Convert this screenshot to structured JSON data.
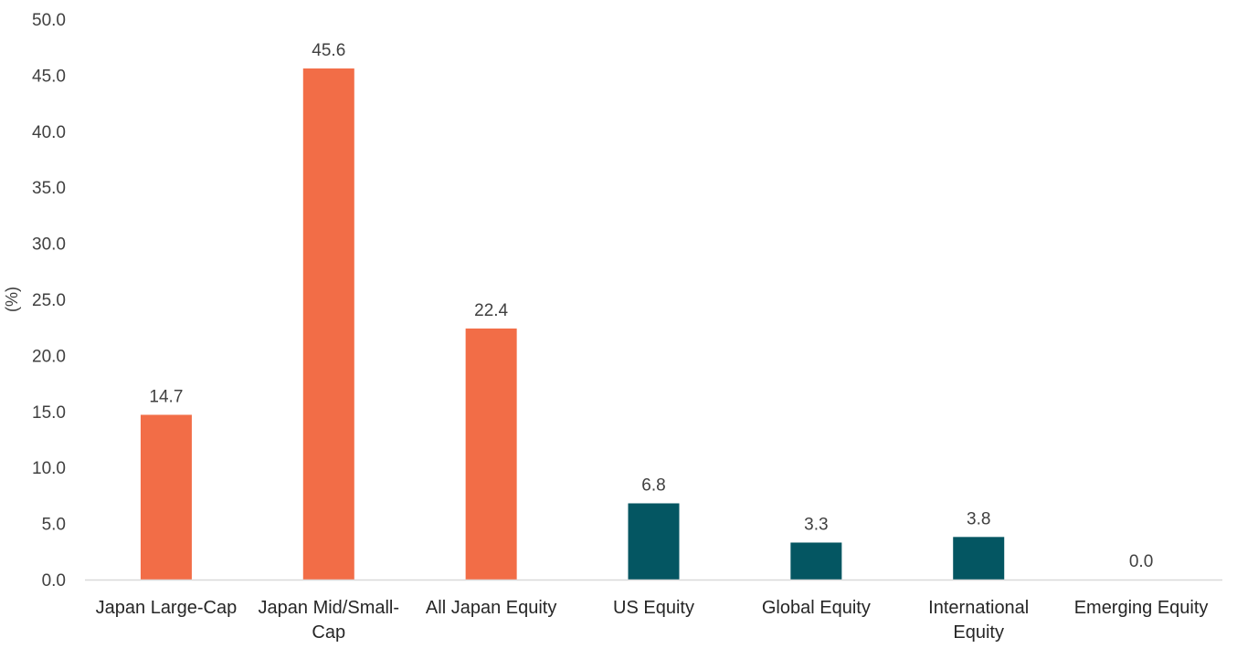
{
  "chart_data": {
    "type": "bar",
    "ylabel": "(%)",
    "ylim": [
      0,
      50
    ],
    "yticks": [
      "0.0",
      "5.0",
      "10.0",
      "15.0",
      "20.0",
      "25.0",
      "30.0",
      "35.0",
      "40.0",
      "45.0",
      "50.0"
    ],
    "grid": false,
    "categories": [
      [
        "Japan Large-Cap"
      ],
      [
        "Japan Mid/Small-",
        "Cap"
      ],
      [
        "All Japan Equity"
      ],
      [
        "US Equity"
      ],
      [
        "Global Equity"
      ],
      [
        "International",
        "Equity"
      ],
      [
        "Emerging Equity"
      ]
    ],
    "values": [
      14.7,
      45.6,
      22.4,
      6.8,
      3.3,
      3.8,
      0.0
    ],
    "value_labels": [
      "14.7",
      "45.6",
      "22.4",
      "6.8",
      "3.3",
      "3.8",
      "0.0"
    ],
    "colors": [
      "#f26d47",
      "#f26d47",
      "#f26d47",
      "#045662",
      "#045662",
      "#045662",
      "#045662"
    ]
  }
}
